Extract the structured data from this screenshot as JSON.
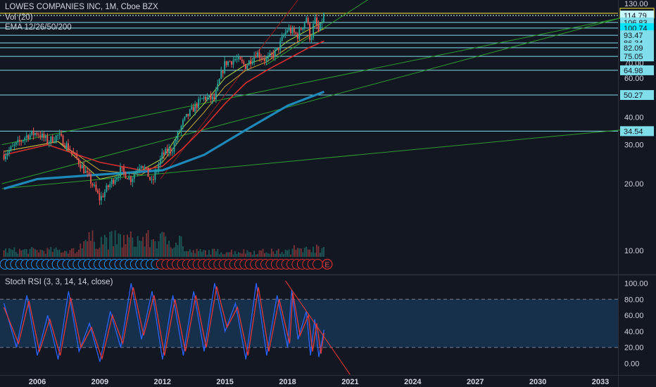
{
  "legend": {
    "title": "LOWES COMPANIES INC, 1M, Cboe BZX",
    "vol": "Vol (20)",
    "ema": "EMA 12/26/50/200"
  },
  "stoch_title": "Stoch RSI (3, 3, 14, 14, close)",
  "colors": {
    "background": "#131722",
    "hline": "#80deea",
    "hline_last": "#c6f7ff",
    "hline_current": "#ffeb3b",
    "badge_current": "#00e5ff",
    "ema12": "#a7d64b",
    "ema26": "#c8a83a",
    "ema50": "#d32f2f",
    "ema200": "#1e88b8",
    "trend": "#2e9c2e",
    "stoch_k": "#2962ff",
    "stoch_d": "#e53935",
    "candle_up": "#26a69a",
    "candle_down": "#ef5350",
    "earnings_marker": "#d32f2f",
    "dividend_marker": "#2196f3"
  },
  "chart_data": [
    {
      "type": "candlestick",
      "title": "LOWES COMPANIES INC, 1M, Cboe BZX",
      "scale": "log",
      "ylim": [
        6,
        131
      ],
      "xlim": [
        2004.3,
        2033.8
      ],
      "y_ticks": [
        10,
        20,
        30,
        40,
        60,
        70,
        80,
        90,
        130
      ],
      "x_ticks": [
        "2006",
        "2009",
        "2012",
        "2015",
        "2018",
        "2021",
        "2024",
        "2027",
        "2030",
        "2033"
      ],
      "x_tick_years": [
        2006,
        2009,
        2012,
        2015,
        2018,
        2021,
        2024,
        2027,
        2030,
        2033
      ],
      "price_levels": [
        {
          "value": 117.51,
          "label": "117.51",
          "style": "current"
        },
        {
          "value": 114.79,
          "label": "114.79",
          "style": "last"
        },
        {
          "value": 106.83,
          "label": "106.83",
          "style": "level"
        },
        {
          "value": 100.74,
          "label": "100.74",
          "style": "highlight"
        },
        {
          "value": 93.47,
          "label": "93.47",
          "style": "level"
        },
        {
          "value": 86.34,
          "label": "86.34",
          "style": "level"
        },
        {
          "value": 82.09,
          "label": "82.09",
          "style": "level"
        },
        {
          "value": 75.05,
          "label": "75.05",
          "style": "level"
        },
        {
          "value": 64.98,
          "label": "64.98",
          "style": "level"
        },
        {
          "value": 50.27,
          "label": "50.27",
          "style": "level"
        },
        {
          "value": 34.54,
          "label": "34.54",
          "style": "level"
        }
      ],
      "price_path": [
        [
          2004.4,
          27
        ],
        [
          2005.0,
          30
        ],
        [
          2005.5,
          33
        ],
        [
          2006.0,
          34
        ],
        [
          2006.5,
          31
        ],
        [
          2007.0,
          33
        ],
        [
          2007.5,
          29
        ],
        [
          2008.0,
          25
        ],
        [
          2008.5,
          21
        ],
        [
          2009.0,
          17
        ],
        [
          2009.5,
          20
        ],
        [
          2010.0,
          23
        ],
        [
          2010.5,
          21
        ],
        [
          2011.0,
          25
        ],
        [
          2011.5,
          20
        ],
        [
          2012.0,
          27
        ],
        [
          2012.5,
          29
        ],
        [
          2013.0,
          38
        ],
        [
          2013.5,
          44
        ],
        [
          2014.0,
          49
        ],
        [
          2014.5,
          48
        ],
        [
          2015.0,
          70
        ],
        [
          2015.5,
          73
        ],
        [
          2016.0,
          68
        ],
        [
          2016.5,
          78
        ],
        [
          2017.0,
          72
        ],
        [
          2017.5,
          80
        ],
        [
          2018.0,
          100
        ],
        [
          2018.5,
          93
        ],
        [
          2018.9,
          113
        ],
        [
          2019.1,
          88
        ],
        [
          2019.3,
          110
        ],
        [
          2019.5,
          96
        ],
        [
          2019.75,
          117.5
        ]
      ],
      "ema": [
        {
          "name": "EMA 12",
          "points": [
            [
              2004.4,
              28
            ],
            [
              2007,
              31
            ],
            [
              2009,
              21
            ],
            [
              2011,
              23
            ],
            [
              2012,
              26
            ],
            [
              2013,
              36
            ],
            [
              2014,
              46
            ],
            [
              2015,
              60
            ],
            [
              2016,
              69
            ],
            [
              2017,
              74
            ],
            [
              2018,
              88
            ],
            [
              2019,
              99
            ],
            [
              2019.75,
              108
            ]
          ]
        },
        {
          "name": "EMA 26",
          "points": [
            [
              2004.4,
              28
            ],
            [
              2007,
              31
            ],
            [
              2009,
              23
            ],
            [
              2011,
              22
            ],
            [
              2012,
              25
            ],
            [
              2013,
              33
            ],
            [
              2014,
              42
            ],
            [
              2015,
              55
            ],
            [
              2016,
              65
            ],
            [
              2017,
              71
            ],
            [
              2018,
              82
            ],
            [
              2019,
              93
            ],
            [
              2019.75,
              100
            ]
          ]
        },
        {
          "name": "EMA 50",
          "points": [
            [
              2004.4,
              27
            ],
            [
              2006.5,
              30
            ],
            [
              2009,
              25
            ],
            [
              2011,
              23
            ],
            [
              2012,
              24
            ],
            [
              2013,
              29
            ],
            [
              2014,
              36
            ],
            [
              2015,
              46
            ],
            [
              2016,
              57
            ],
            [
              2017,
              65
            ],
            [
              2018,
              73
            ],
            [
              2019,
              82
            ],
            [
              2019.75,
              88
            ]
          ]
        },
        {
          "name": "EMA 200",
          "points": [
            [
              2004.4,
              19
            ],
            [
              2006,
              21
            ],
            [
              2009,
              22
            ],
            [
              2012,
              23
            ],
            [
              2014,
              27
            ],
            [
              2016,
              35
            ],
            [
              2018,
              45
            ],
            [
              2019.75,
              52
            ]
          ]
        }
      ],
      "trendlines": [
        [
          [
            2004.3,
            30
          ],
          [
            2034,
            112
          ]
        ],
        [
          [
            2004.3,
            19
          ],
          [
            2034,
            35
          ]
        ],
        [
          [
            2017.0,
            69
          ],
          [
            2024,
            182
          ]
        ],
        [
          [
            2004.3,
            20
          ],
          [
            2034,
            112
          ]
        ]
      ],
      "channel": [
        [
          2011.9,
          21
        ],
        [
          2019.1,
          160
        ]
      ],
      "volume_label": "Vol (20)"
    },
    {
      "type": "line",
      "title": "Stoch RSI (3, 3, 14, 14, close)",
      "ylim": [
        -8,
        108
      ],
      "y_ticks": [
        0,
        20,
        40,
        60,
        80,
        100
      ],
      "y_tick_labels": [
        "0.00",
        "20.00",
        "40.00",
        "60.00",
        "80.00",
        "100.00"
      ],
      "bands": {
        "upper": 80,
        "lower": 20
      },
      "series": [
        {
          "name": "%K",
          "points": [
            [
              2004.4,
              75
            ],
            [
              2005,
              20
            ],
            [
              2005.5,
              85
            ],
            [
              2006,
              10
            ],
            [
              2006.5,
              60
            ],
            [
              2007,
              5
            ],
            [
              2007.5,
              90
            ],
            [
              2008,
              15
            ],
            [
              2008.5,
              50
            ],
            [
              2009,
              2
            ],
            [
              2009.5,
              65
            ],
            [
              2010,
              20
            ],
            [
              2010.5,
              100
            ],
            [
              2011,
              30
            ],
            [
              2011.5,
              90
            ],
            [
              2012,
              5
            ],
            [
              2012.5,
              85
            ],
            [
              2013,
              10
            ],
            [
              2013.5,
              90
            ],
            [
              2014,
              15
            ],
            [
              2014.5,
              100
            ],
            [
              2015,
              40
            ],
            [
              2015.5,
              75
            ],
            [
              2016,
              5
            ],
            [
              2016.5,
              100
            ],
            [
              2017,
              10
            ],
            [
              2017.5,
              85
            ],
            [
              2018,
              20
            ],
            [
              2018.2,
              92
            ],
            [
              2018.5,
              30
            ],
            [
              2018.9,
              65
            ],
            [
              2019.1,
              10
            ],
            [
              2019.3,
              55
            ],
            [
              2019.5,
              8
            ],
            [
              2019.75,
              42
            ]
          ]
        },
        {
          "name": "%D",
          "points": [
            [
              2004.4,
              70
            ],
            [
              2005.1,
              25
            ],
            [
              2005.6,
              78
            ],
            [
              2006.1,
              15
            ],
            [
              2006.6,
              55
            ],
            [
              2007.1,
              10
            ],
            [
              2007.6,
              82
            ],
            [
              2008.1,
              20
            ],
            [
              2008.6,
              45
            ],
            [
              2009.1,
              6
            ],
            [
              2009.6,
              60
            ],
            [
              2010.1,
              25
            ],
            [
              2010.6,
              95
            ],
            [
              2011.1,
              35
            ],
            [
              2011.6,
              85
            ],
            [
              2012.1,
              10
            ],
            [
              2012.6,
              80
            ],
            [
              2013.1,
              15
            ],
            [
              2013.6,
              85
            ],
            [
              2014.1,
              20
            ],
            [
              2014.6,
              96
            ],
            [
              2015.1,
              45
            ],
            [
              2015.6,
              70
            ],
            [
              2016.1,
              10
            ],
            [
              2016.6,
              95
            ],
            [
              2017.1,
              15
            ],
            [
              2017.6,
              80
            ],
            [
              2018.1,
              25
            ],
            [
              2018.25,
              88
            ],
            [
              2018.6,
              35
            ],
            [
              2019.0,
              60
            ],
            [
              2019.2,
              15
            ],
            [
              2019.4,
              50
            ],
            [
              2019.6,
              12
            ],
            [
              2019.75,
              38
            ]
          ]
        }
      ],
      "trendline": [
        [
          2017.9,
          103
        ],
        [
          2021.0,
          -14
        ]
      ]
    }
  ],
  "markers": {
    "earnings_label": "E"
  }
}
